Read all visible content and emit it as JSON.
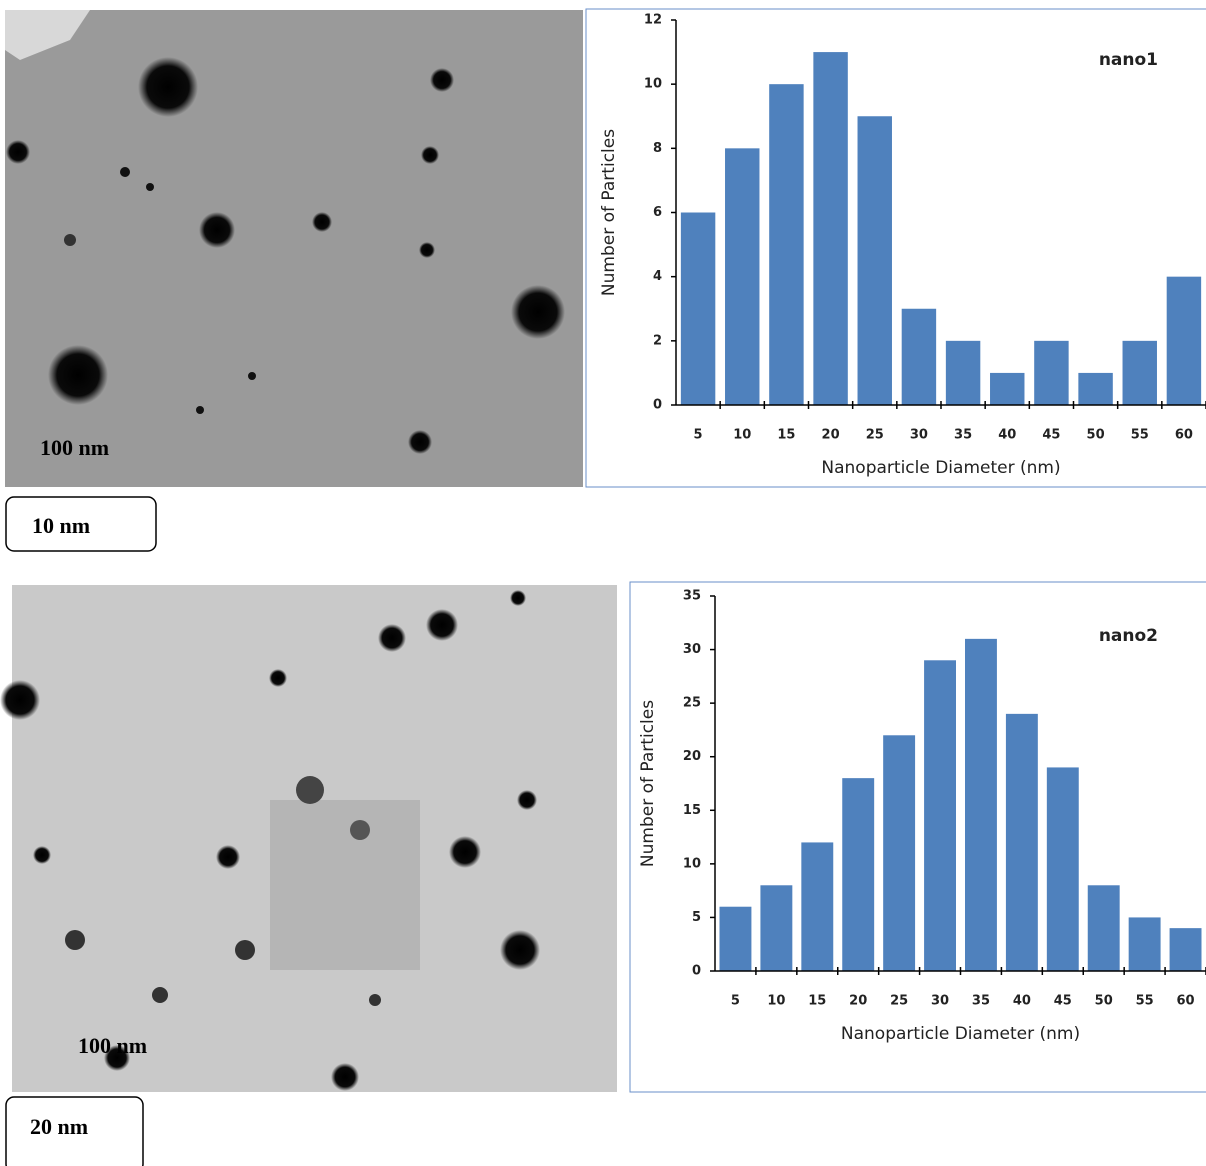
{
  "chart_data": [
    {
      "type": "bar",
      "annotation": "nano1",
      "x_label": "Nanoparticle Diameter (nm)",
      "y_label": "Number of Particles",
      "categories": [
        "5",
        "10",
        "15",
        "20",
        "25",
        "30",
        "35",
        "40",
        "45",
        "50",
        "55",
        "60"
      ],
      "values": [
        6,
        8,
        10,
        11,
        9,
        3,
        2,
        1,
        2,
        1,
        2,
        4
      ],
      "color": "#4f81bd",
      "ylim": [
        0,
        12
      ],
      "yticks": [
        0,
        2,
        4,
        6,
        8,
        10,
        12
      ]
    },
    {
      "type": "bar",
      "annotation": "nano2",
      "x_label": "Nanoparticle Diameter (nm)",
      "y_label": "Number of Particles",
      "categories": [
        "5",
        "10",
        "15",
        "20",
        "25",
        "30",
        "35",
        "40",
        "45",
        "50",
        "55",
        "60"
      ],
      "values": [
        6,
        8,
        12,
        18,
        22,
        29,
        31,
        24,
        19,
        8,
        5,
        4
      ],
      "color": "#4f81bd",
      "ylim": [
        0,
        35
      ],
      "yticks": [
        0,
        5,
        10,
        15,
        20,
        25,
        30,
        35
      ]
    }
  ],
  "images": [
    {
      "scale_label": "100 nm",
      "caption": "10 nm"
    },
    {
      "scale_label": "100 nm",
      "caption": "20 nm"
    }
  ]
}
